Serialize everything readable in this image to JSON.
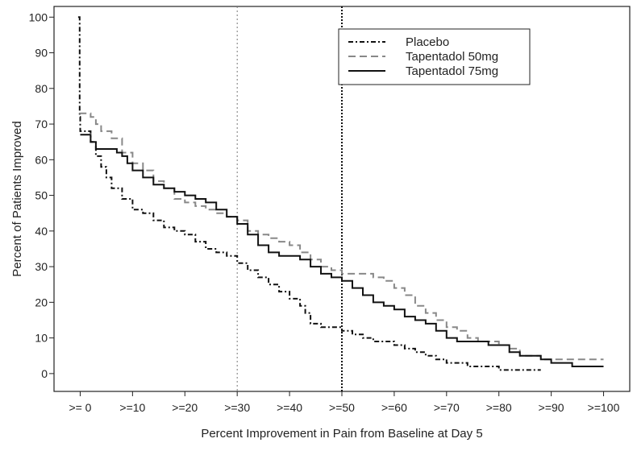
{
  "chart_data": {
    "type": "line",
    "title": "",
    "xlabel": "Percent Improvement in Pain from Baseline at Day 5",
    "ylabel": "Percent of Patients Improved",
    "xlim": [
      -5,
      105
    ],
    "ylim": [
      -5,
      103
    ],
    "x_ticks": [
      {
        "value": 0,
        "label": ">= 0"
      },
      {
        "value": 10,
        "label": ">=10"
      },
      {
        "value": 20,
        "label": ">=20"
      },
      {
        "value": 30,
        "label": ">=30"
      },
      {
        "value": 40,
        "label": ">=40"
      },
      {
        "value": 50,
        "label": ">=50"
      },
      {
        "value": 60,
        "label": ">=60"
      },
      {
        "value": 70,
        "label": ">=70"
      },
      {
        "value": 80,
        "label": ">=80"
      },
      {
        "value": 90,
        "label": ">=90"
      },
      {
        "value": 100,
        "label": ">=100"
      }
    ],
    "y_ticks": [
      0,
      10,
      20,
      30,
      40,
      50,
      60,
      70,
      80,
      90,
      100
    ],
    "grid": false,
    "legend_position": "top-right",
    "reference_lines": [
      {
        "x": 30,
        "style": "dotted-light"
      },
      {
        "x": 50,
        "style": "dotted-bold"
      }
    ],
    "series": [
      {
        "name": "Placebo",
        "style": "dash-dot",
        "color": "#111111",
        "points": [
          [
            -0.4,
            100
          ],
          [
            -0.1,
            72
          ],
          [
            0,
            68
          ],
          [
            1,
            68
          ],
          [
            2,
            65
          ],
          [
            3,
            61
          ],
          [
            4,
            58
          ],
          [
            5,
            55
          ],
          [
            6,
            52
          ],
          [
            8,
            49
          ],
          [
            10,
            46
          ],
          [
            12,
            45
          ],
          [
            14,
            43
          ],
          [
            16,
            41
          ],
          [
            18,
            40
          ],
          [
            20,
            39
          ],
          [
            22,
            37
          ],
          [
            24,
            35
          ],
          [
            26,
            34
          ],
          [
            28,
            33
          ],
          [
            30,
            31
          ],
          [
            32,
            29
          ],
          [
            34,
            27
          ],
          [
            36,
            25
          ],
          [
            38,
            23
          ],
          [
            40,
            21
          ],
          [
            42,
            19
          ],
          [
            43,
            17
          ],
          [
            44,
            14
          ],
          [
            46,
            13
          ],
          [
            48,
            13
          ],
          [
            50,
            12
          ],
          [
            52,
            11
          ],
          [
            54,
            10
          ],
          [
            56,
            9
          ],
          [
            58,
            9
          ],
          [
            60,
            8
          ],
          [
            62,
            7
          ],
          [
            64,
            6
          ],
          [
            66,
            5
          ],
          [
            68,
            4
          ],
          [
            70,
            3
          ],
          [
            72,
            3
          ],
          [
            74,
            2
          ],
          [
            76,
            2
          ],
          [
            78,
            2
          ],
          [
            80,
            1
          ],
          [
            82,
            1
          ],
          [
            84,
            1
          ],
          [
            86,
            1
          ],
          [
            88,
            1
          ]
        ]
      },
      {
        "name": "Tapentadol 50mg",
        "style": "dashed",
        "color": "#888888",
        "points": [
          [
            -0.2,
            73
          ],
          [
            0,
            73
          ],
          [
            2,
            72
          ],
          [
            3,
            70
          ],
          [
            4,
            68
          ],
          [
            6,
            66
          ],
          [
            8,
            62
          ],
          [
            10,
            59
          ],
          [
            12,
            57
          ],
          [
            14,
            54
          ],
          [
            16,
            52
          ],
          [
            18,
            49
          ],
          [
            20,
            48
          ],
          [
            22,
            47
          ],
          [
            24,
            46
          ],
          [
            26,
            45
          ],
          [
            28,
            44
          ],
          [
            30,
            43
          ],
          [
            32,
            40
          ],
          [
            34,
            39
          ],
          [
            36,
            38
          ],
          [
            38,
            37
          ],
          [
            40,
            36
          ],
          [
            42,
            34
          ],
          [
            44,
            32
          ],
          [
            46,
            30
          ],
          [
            48,
            29
          ],
          [
            50,
            28
          ],
          [
            52,
            28
          ],
          [
            54,
            28
          ],
          [
            56,
            27
          ],
          [
            58,
            26
          ],
          [
            60,
            24
          ],
          [
            62,
            22
          ],
          [
            64,
            19
          ],
          [
            66,
            17
          ],
          [
            68,
            15
          ],
          [
            70,
            13
          ],
          [
            72,
            12
          ],
          [
            74,
            10
          ],
          [
            76,
            9
          ],
          [
            78,
            9
          ],
          [
            80,
            8
          ],
          [
            82,
            7
          ],
          [
            84,
            5
          ],
          [
            86,
            5
          ],
          [
            88,
            4
          ],
          [
            90,
            4
          ],
          [
            95,
            4
          ],
          [
            100,
            4
          ]
        ]
      },
      {
        "name": "Tapentadol 75mg",
        "style": "solid",
        "color": "#111111",
        "points": [
          [
            0,
            67
          ],
          [
            1,
            67
          ],
          [
            2,
            65
          ],
          [
            3,
            63
          ],
          [
            5,
            63
          ],
          [
            7,
            62
          ],
          [
            8,
            61
          ],
          [
            9,
            59
          ],
          [
            10,
            57
          ],
          [
            12,
            55
          ],
          [
            14,
            53
          ],
          [
            16,
            52
          ],
          [
            18,
            51
          ],
          [
            20,
            50
          ],
          [
            22,
            49
          ],
          [
            24,
            48
          ],
          [
            26,
            46
          ],
          [
            28,
            44
          ],
          [
            30,
            42
          ],
          [
            32,
            39
          ],
          [
            34,
            36
          ],
          [
            36,
            34
          ],
          [
            38,
            33
          ],
          [
            40,
            33
          ],
          [
            42,
            32
          ],
          [
            44,
            30
          ],
          [
            46,
            28
          ],
          [
            48,
            27
          ],
          [
            50,
            26
          ],
          [
            52,
            24
          ],
          [
            54,
            22
          ],
          [
            56,
            20
          ],
          [
            58,
            19
          ],
          [
            60,
            18
          ],
          [
            62,
            16
          ],
          [
            64,
            15
          ],
          [
            66,
            14
          ],
          [
            68,
            12
          ],
          [
            70,
            10
          ],
          [
            72,
            9
          ],
          [
            74,
            9
          ],
          [
            76,
            9
          ],
          [
            78,
            8
          ],
          [
            80,
            8
          ],
          [
            82,
            6
          ],
          [
            84,
            5
          ],
          [
            86,
            5
          ],
          [
            88,
            4
          ],
          [
            90,
            3
          ],
          [
            92,
            3
          ],
          [
            94,
            2
          ],
          [
            96,
            2
          ],
          [
            100,
            2
          ]
        ]
      }
    ]
  }
}
